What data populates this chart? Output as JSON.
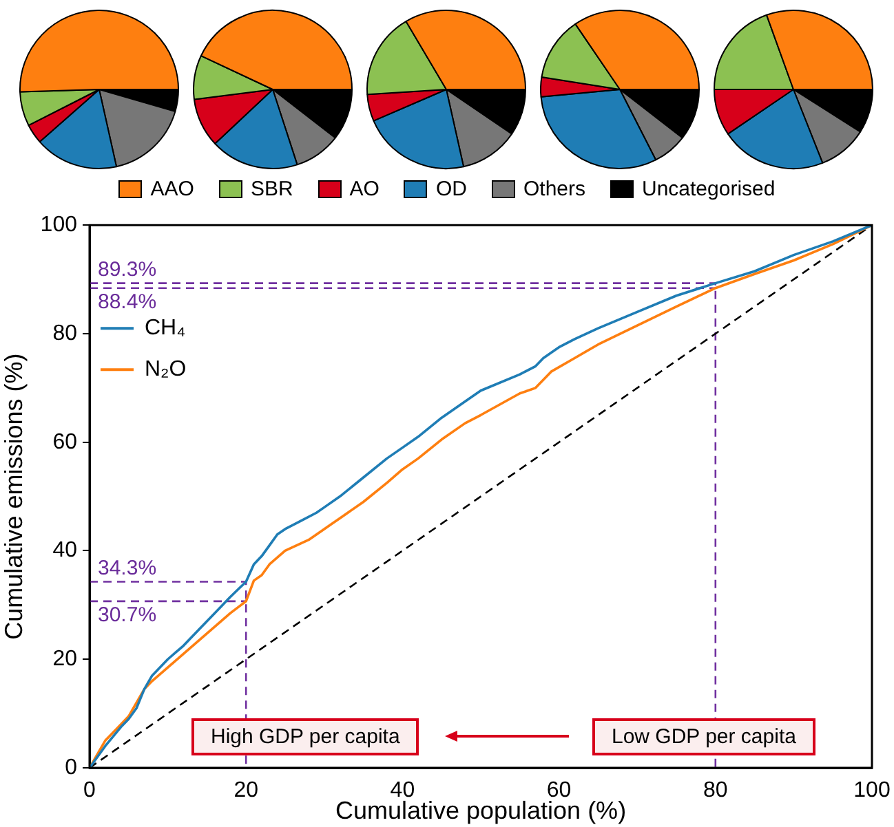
{
  "chart_data": [
    {
      "type": "pie",
      "categories": [
        "AAO",
        "SBR",
        "AO",
        "OD",
        "Others",
        "Uncategorised"
      ],
      "values": [
        50.5,
        7,
        4,
        17,
        17,
        4.5
      ],
      "colors": [
        "#fe7f10",
        "#8cc152",
        "#d7001a",
        "#1f7db5",
        "#777777",
        "#000000"
      ],
      "legend": "bottom"
    },
    {
      "type": "pie",
      "values": [
        43,
        9,
        10,
        18,
        9.5,
        10.5
      ],
      "colors": [
        "#fe7f10",
        "#8cc152",
        "#d7001a",
        "#1f7db5",
        "#777777",
        "#000000"
      ]
    },
    {
      "type": "pie",
      "values": [
        33.5,
        17.5,
        5.5,
        22,
        12,
        9.5
      ],
      "colors": [
        "#fe7f10",
        "#8cc152",
        "#d7001a",
        "#1f7db5",
        "#777777",
        "#000000"
      ]
    },
    {
      "type": "pie",
      "values": [
        34.5,
        13,
        4,
        31,
        7,
        10.5
      ],
      "colors": [
        "#fe7f10",
        "#8cc152",
        "#d7001a",
        "#1f7db5",
        "#777777",
        "#000000"
      ]
    },
    {
      "type": "pie",
      "values": [
        30.5,
        19.5,
        9.5,
        21.5,
        10,
        9
      ],
      "colors": [
        "#fe7f10",
        "#8cc152",
        "#d7001a",
        "#1f7db5",
        "#777777",
        "#000000"
      ]
    },
    {
      "type": "line",
      "xlabel": "Cumulative population (%)",
      "ylabel": "Cumulative emissions (%)",
      "xlim": [
        0,
        100
      ],
      "ylim": [
        0,
        100
      ],
      "xticks": [
        0,
        20,
        40,
        60,
        80,
        100
      ],
      "yticks": [
        0,
        20,
        40,
        60,
        80,
        100
      ],
      "legend": "top left",
      "series": [
        {
          "name": "CH₄",
          "color": "#1f7db5",
          "x": [
            0,
            2,
            4,
            5,
            6,
            7,
            8,
            10,
            12,
            14,
            16,
            18,
            20,
            21,
            22,
            23,
            24,
            25,
            27,
            29,
            30,
            32,
            35,
            38,
            40,
            42,
            45,
            48,
            50,
            55,
            57,
            58,
            60,
            62,
            65,
            70,
            75,
            80,
            85,
            90,
            95,
            100
          ],
          "values": [
            0,
            4,
            7.5,
            9,
            11,
            14.5,
            17,
            20,
            22.5,
            25.5,
            28.5,
            31.5,
            34.3,
            37.5,
            39,
            41,
            43,
            44,
            45.5,
            47,
            48,
            50,
            53.5,
            57,
            59,
            61,
            64.5,
            67.5,
            69.5,
            72.5,
            74,
            75.5,
            77.5,
            79,
            81,
            84,
            87,
            89.3,
            91.5,
            94.5,
            97,
            100
          ]
        },
        {
          "name": "N₂O",
          "color": "#fe7f10",
          "x": [
            0,
            2,
            4,
            5,
            6,
            7,
            8,
            10,
            12,
            14,
            16,
            18,
            20,
            21,
            22,
            23,
            25,
            28,
            30,
            32,
            35,
            38,
            40,
            42,
            45,
            48,
            50,
            55,
            57,
            59,
            62,
            65,
            70,
            75,
            80,
            85,
            90,
            95,
            100
          ],
          "values": [
            0,
            5,
            8,
            9.5,
            12,
            14.5,
            16,
            18.5,
            21,
            23.5,
            26,
            28.5,
            30.7,
            34.5,
            35.5,
            37.5,
            40,
            42,
            44,
            46,
            49,
            52.5,
            55,
            57,
            60.5,
            63.5,
            65,
            69,
            70,
            73,
            75.5,
            78,
            81.5,
            85,
            88.4,
            91,
            93.5,
            96.5,
            100
          ]
        },
        {
          "color": "#000000",
          "line_style": "dashed",
          "x": [
            0,
            100
          ],
          "values": [
            0,
            100
          ]
        },
        {
          "color": "#7030a0",
          "line_style": "dashed",
          "x": [
            0,
            80,
            80
          ],
          "values": [
            89.3,
            89.3,
            0
          ]
        },
        {
          "color": "#7030a0",
          "line_style": "dashed",
          "x": [
            0,
            80
          ],
          "values": [
            88.4,
            88.4
          ]
        },
        {
          "color": "#7030a0",
          "line_style": "dashed",
          "x": [
            0,
            20,
            20
          ],
          "values": [
            34.3,
            34.3,
            0
          ]
        },
        {
          "color": "#7030a0",
          "line_style": "dashed",
          "x": [
            0,
            20
          ],
          "values": [
            30.7,
            30.7
          ]
        }
      ],
      "annotations": [
        {
          "text": "89.3%",
          "y": 89.3
        },
        {
          "text": "88.4%",
          "y": 88.4
        },
        {
          "text": "34.3%",
          "y": 34.3
        },
        {
          "text": "30.7%",
          "y": 30.7
        },
        "High GDP per capita",
        "Low GDP per capita"
      ]
    }
  ]
}
